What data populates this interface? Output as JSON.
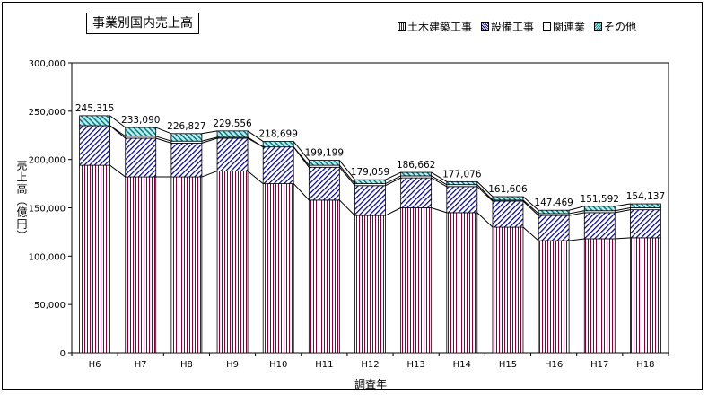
{
  "chart_data": {
    "type": "bar",
    "stacked": true,
    "title": "事業別国内売上高",
    "xlabel": "調査年",
    "ylabel": "売上高（億円）",
    "ylim": [
      0,
      300000
    ],
    "yticks": [
      "0",
      "50,000",
      "100,000",
      "150,000",
      "200,000",
      "250,000",
      "300,000"
    ],
    "ytick_values": [
      0,
      50000,
      100000,
      150000,
      200000,
      250000,
      300000
    ],
    "categories": [
      "H6",
      "H7",
      "H8",
      "H9",
      "H10",
      "H11",
      "H12",
      "H13",
      "H14",
      "H15",
      "H16",
      "H17",
      "H18"
    ],
    "totals": [
      245315,
      233090,
      226827,
      229556,
      218699,
      199199,
      179059,
      186662,
      177076,
      161606,
      147469,
      151592,
      154137
    ],
    "total_labels": [
      "245,315",
      "233,090",
      "226,827",
      "229,556",
      "218,699",
      "199,199",
      "179,059",
      "186,662",
      "177,076",
      "161,606",
      "147,469",
      "151,592",
      "154,137"
    ],
    "legend_position": "top-right",
    "grid": false,
    "series": [
      {
        "name": "土木建築工事",
        "values": [
          194000,
          182000,
          182000,
          188000,
          175000,
          158000,
          142000,
          150000,
          145000,
          130000,
          116000,
          118000,
          119000
        ],
        "pattern": "vertical-lines",
        "color": "#800040"
      },
      {
        "name": "設備工事",
        "values": [
          41000,
          40000,
          35000,
          34000,
          38000,
          34000,
          31000,
          31000,
          27000,
          27000,
          26000,
          27000,
          29000
        ],
        "pattern": "diagonal-lines",
        "color": "#000080"
      },
      {
        "name": "関連業",
        "values": [
          0,
          2000,
          2000,
          1000,
          0,
          2000,
          2000,
          2000,
          2000,
          1000,
          2000,
          2000,
          2000
        ],
        "pattern": "solid",
        "color": "#ffffff"
      },
      {
        "name": "その他",
        "values": [
          10315,
          9090,
          7827,
          6556,
          5699,
          5199,
          4059,
          3662,
          3076,
          3606,
          3469,
          4592,
          4137
        ],
        "pattern": "teal-diagonal",
        "color": "#008080"
      }
    ]
  }
}
